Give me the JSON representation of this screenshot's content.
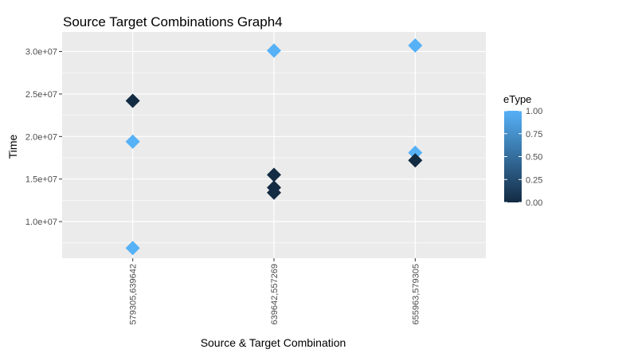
{
  "chart_data": {
    "type": "scatter",
    "title": "Source Target Combinations Graph4",
    "xlabel": "Source & Target Combination",
    "ylabel": "Time",
    "categories": [
      "579305,639642",
      "639642,557269",
      "655963,579305"
    ],
    "y_ticks": [
      10000000,
      15000000,
      20000000,
      25000000,
      30000000
    ],
    "y_tick_labels": [
      "1.0e+07",
      "1.5e+07",
      "2.0e+07",
      "2.5e+07",
      "3.0e+07"
    ],
    "ylim": [
      5700000,
      32300000
    ],
    "grid": true,
    "marker": "diamond",
    "points": [
      {
        "category": "579305,639642",
        "y": 24200000,
        "etype": 0
      },
      {
        "category": "579305,639642",
        "y": 19400000,
        "etype": 1
      },
      {
        "category": "579305,639642",
        "y": 6900000,
        "etype": 1
      },
      {
        "category": "639642,557269",
        "y": 30100000,
        "etype": 1
      },
      {
        "category": "639642,557269",
        "y": 15500000,
        "etype": 0
      },
      {
        "category": "639642,557269",
        "y": 14000000,
        "etype": 0
      },
      {
        "category": "639642,557269",
        "y": 13400000,
        "etype": 0
      },
      {
        "category": "655963,579305",
        "y": 30700000,
        "etype": 1
      },
      {
        "category": "655963,579305",
        "y": 18100000,
        "etype": 1
      },
      {
        "category": "655963,579305",
        "y": 17200000,
        "etype": 0
      }
    ],
    "legend": {
      "title": "eType",
      "position": "right",
      "ticks": [
        1.0,
        0.75,
        0.5,
        0.25,
        0.0
      ],
      "tick_labels": [
        "1.00",
        "0.75",
        "0.50",
        "0.25",
        "0.00"
      ],
      "color_low": "#132b43",
      "color_high": "#56b1f7"
    },
    "panel_background": "#ebebeb",
    "grid_color": "#ffffff"
  }
}
